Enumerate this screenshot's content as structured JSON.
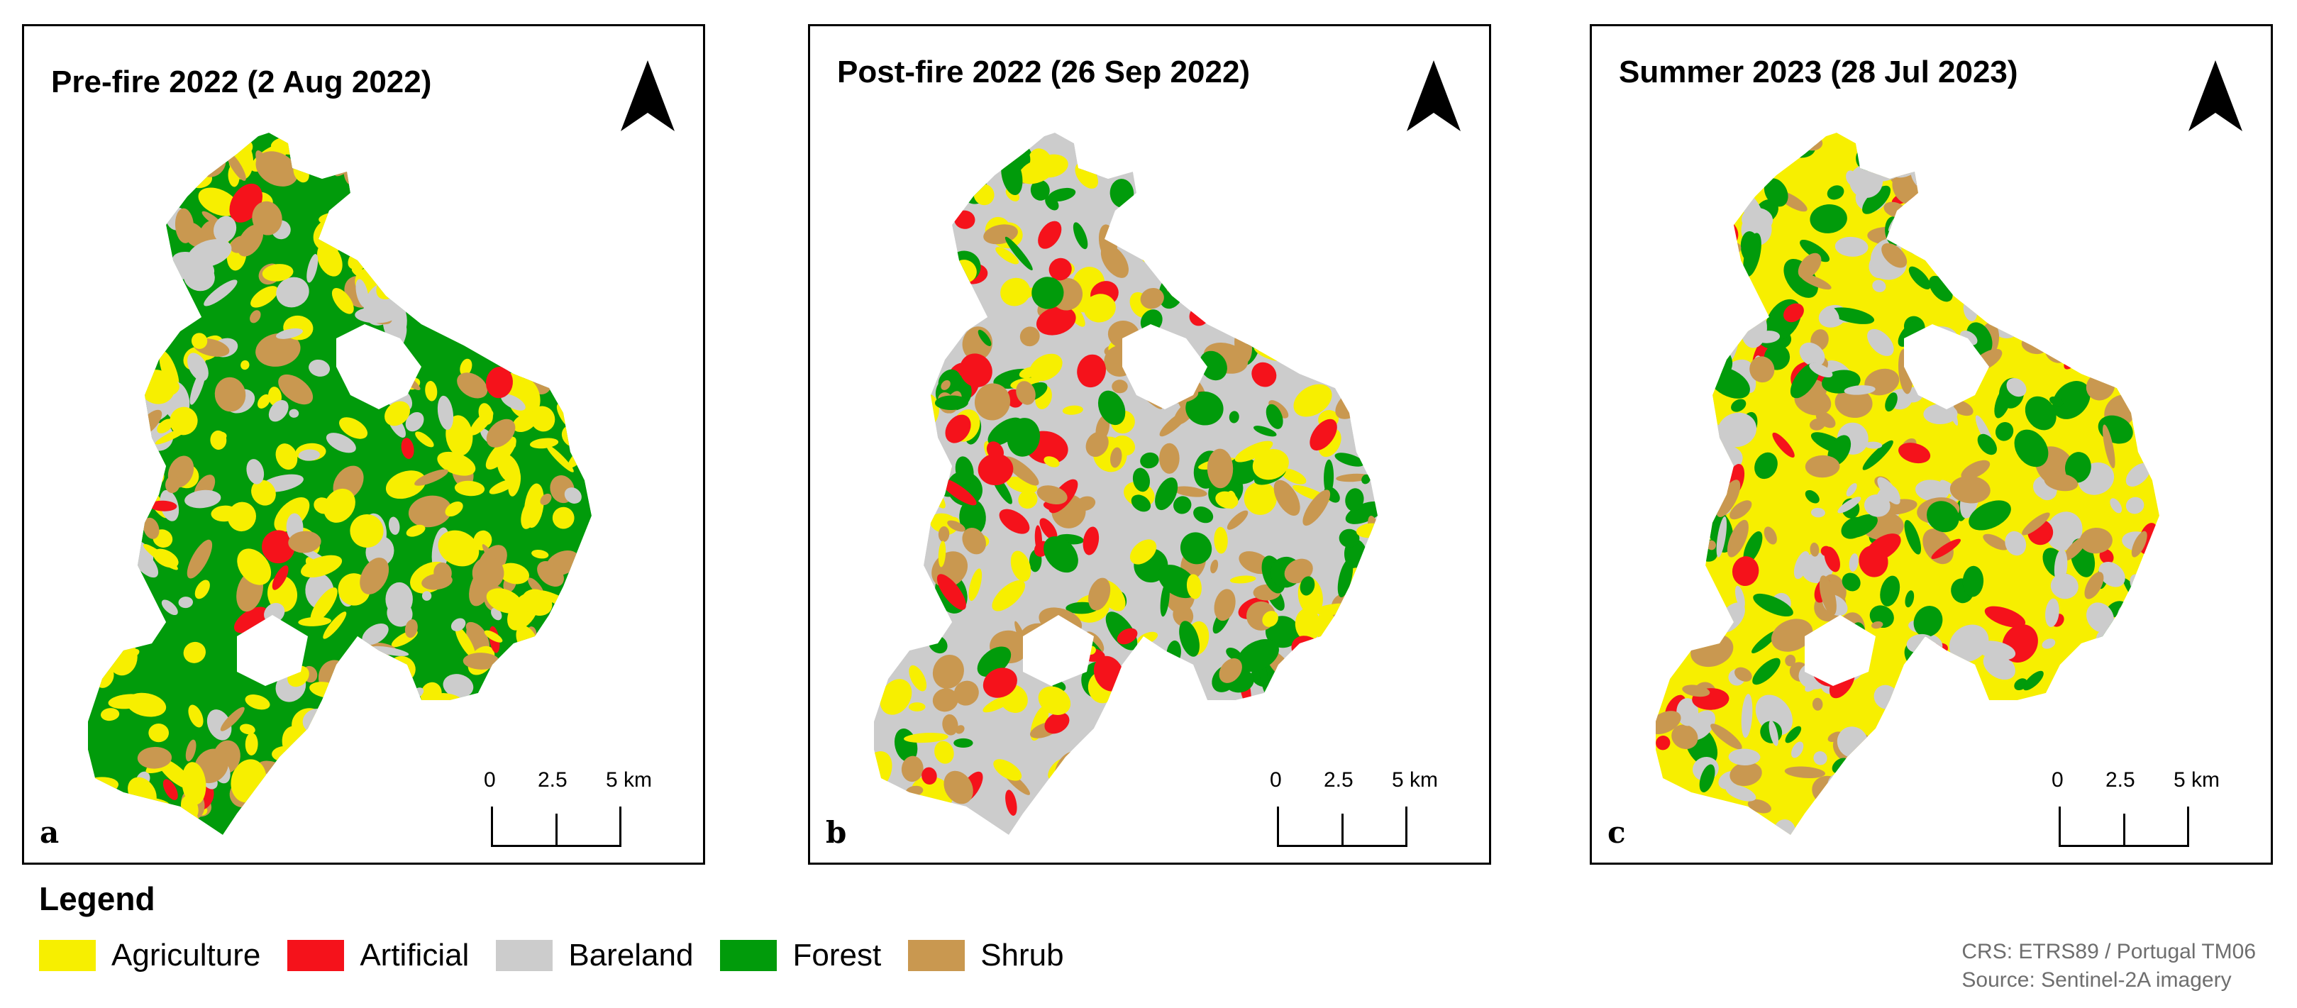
{
  "panels": [
    {
      "title": "Pre-fire 2022 (2 Aug 2022)",
      "letter": "a",
      "dominant": "Forest"
    },
    {
      "title": "Post-fire 2022 (26 Sep 2022)",
      "letter": "b",
      "dominant": "Bareland"
    },
    {
      "title": "Summer 2023 (28 Jul 2023)",
      "letter": "c",
      "dominant": "Agriculture"
    }
  ],
  "scalebar": {
    "labels": [
      "0",
      "2.5",
      "5 km"
    ]
  },
  "legend": {
    "title": "Legend",
    "items": [
      {
        "label": "Agriculture",
        "color": "#f7ef00"
      },
      {
        "label": "Artificial",
        "color": "#f5121b"
      },
      {
        "label": "Bareland",
        "color": "#cccccc"
      },
      {
        "label": "Forest",
        "color": "#019b0b"
      },
      {
        "label": "Shrub",
        "color": "#c99850"
      }
    ]
  },
  "credits": {
    "crs": "CRS: ETRS89 / Portugal TM06",
    "source": "Source: Sentinel-2A imagery"
  }
}
